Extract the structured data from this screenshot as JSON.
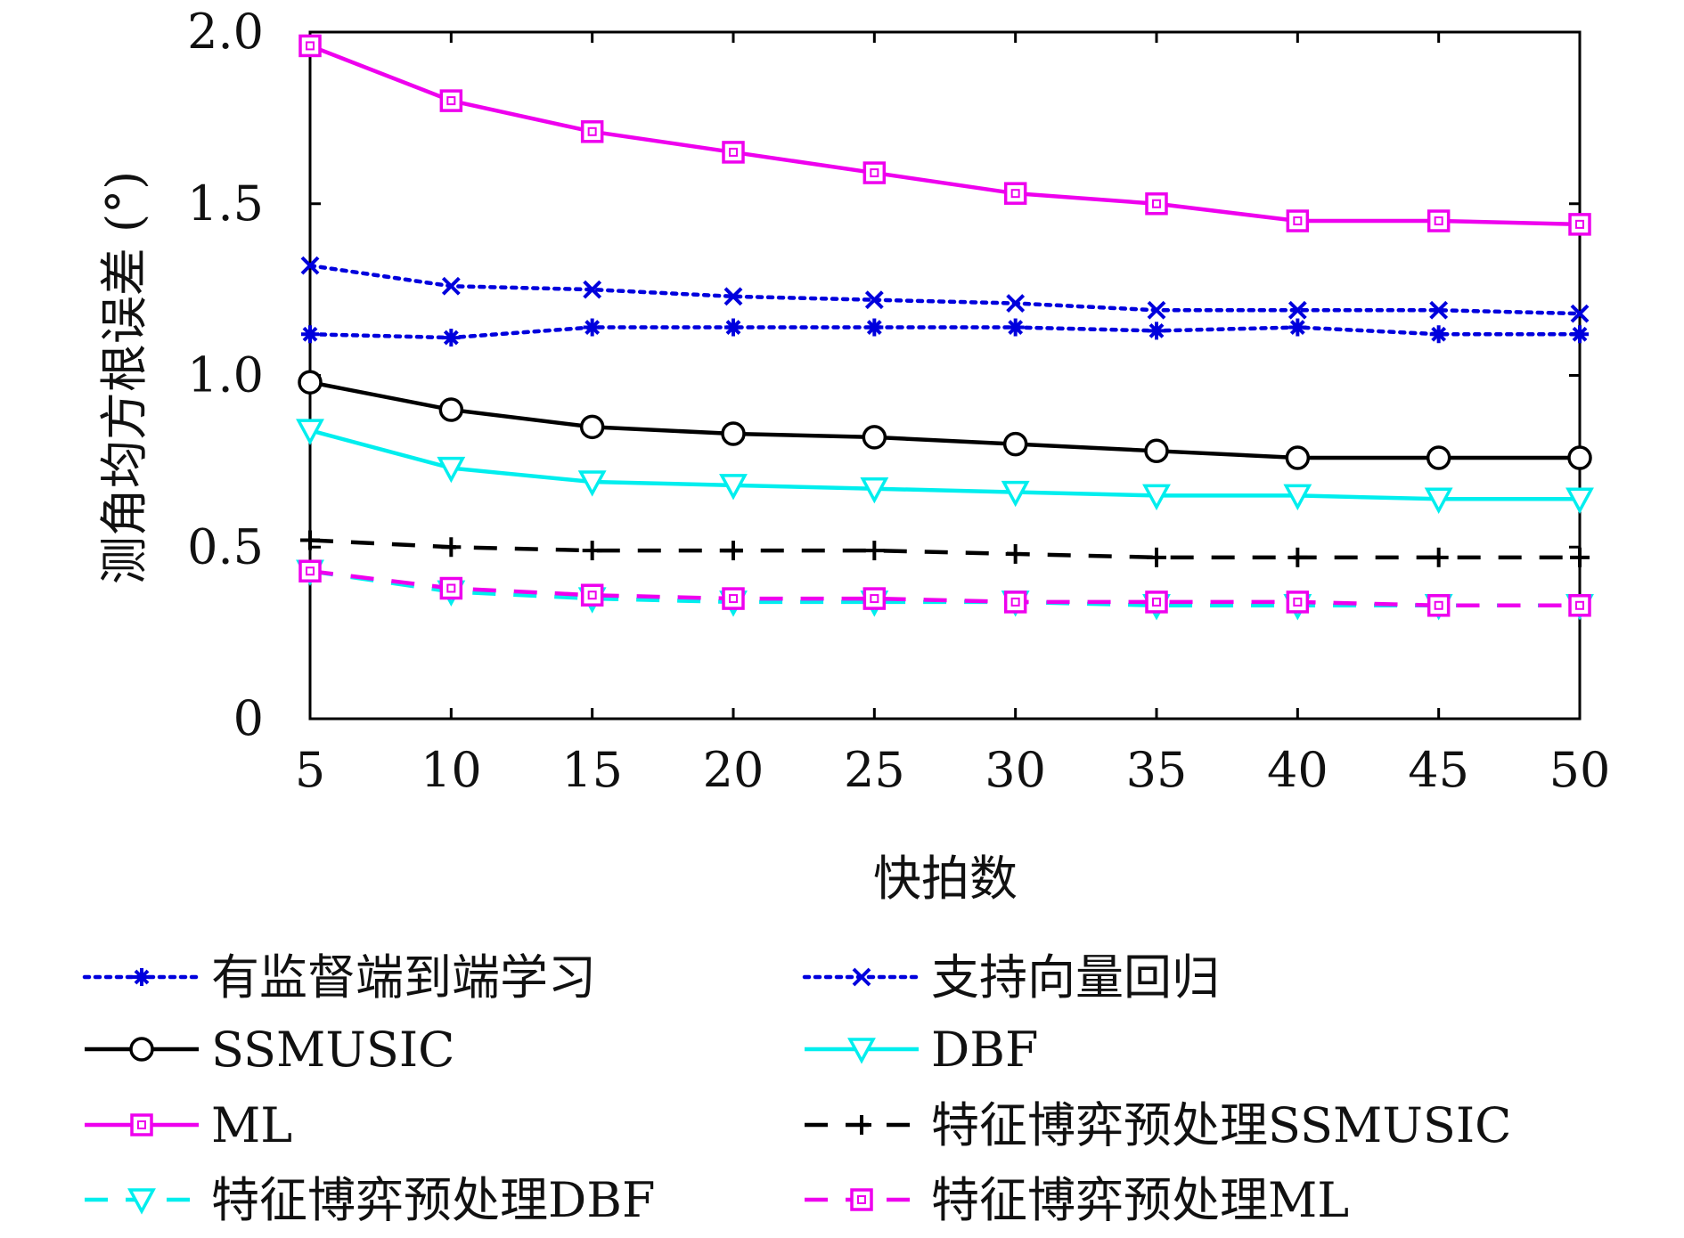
{
  "chart_data": {
    "type": "line",
    "title": "",
    "xlabel": "快拍数",
    "ylabel": "测角均方根误差 (°)",
    "xlim": [
      5,
      50
    ],
    "ylim": [
      0,
      2.0
    ],
    "x": [
      5,
      10,
      15,
      20,
      25,
      30,
      35,
      40,
      45,
      50
    ],
    "x_ticks": [
      "5",
      "10",
      "15",
      "20",
      "25",
      "30",
      "35",
      "40",
      "45",
      "50"
    ],
    "y_ticks": [
      {
        "value": 0,
        "label": "0"
      },
      {
        "value": 0.5,
        "label": "0.5"
      },
      {
        "value": 1.0,
        "label": "1.0"
      },
      {
        "value": 1.5,
        "label": "1.5"
      },
      {
        "value": 2.0,
        "label": "2.0"
      }
    ],
    "grid": false,
    "legend_position": "bottom",
    "series": [
      {
        "name": "有监督端到端学习",
        "color": "#0000dd",
        "dash": "dotted",
        "marker": "asterisk",
        "values": [
          1.12,
          1.11,
          1.14,
          1.14,
          1.14,
          1.14,
          1.13,
          1.14,
          1.12,
          1.12
        ]
      },
      {
        "name": "支持向量回归",
        "color": "#0000dd",
        "dash": "dotted",
        "marker": "x",
        "values": [
          1.32,
          1.26,
          1.25,
          1.23,
          1.22,
          1.21,
          1.19,
          1.19,
          1.19,
          1.18
        ]
      },
      {
        "name": "SSMUSIC",
        "color": "#000000",
        "dash": "solid",
        "marker": "circle",
        "values": [
          0.98,
          0.9,
          0.85,
          0.83,
          0.82,
          0.8,
          0.78,
          0.76,
          0.76,
          0.76
        ]
      },
      {
        "name": "DBF",
        "color": "#00eeee",
        "dash": "solid",
        "marker": "triangle-down",
        "values": [
          0.84,
          0.73,
          0.69,
          0.68,
          0.67,
          0.66,
          0.65,
          0.65,
          0.64,
          0.64
        ]
      },
      {
        "name": "ML",
        "color": "#ee00ee",
        "dash": "solid",
        "marker": "square",
        "values": [
          1.96,
          1.8,
          1.71,
          1.65,
          1.59,
          1.53,
          1.5,
          1.45,
          1.45,
          1.44
        ]
      },
      {
        "name": "特征博弈预处理SSMUSIC",
        "color": "#000000",
        "dash": "dashed",
        "marker": "plus",
        "values": [
          0.52,
          0.5,
          0.49,
          0.49,
          0.49,
          0.48,
          0.47,
          0.47,
          0.47,
          0.47
        ]
      },
      {
        "name": "特征博弈预处理DBF",
        "color": "#00eeee",
        "dash": "dashed",
        "marker": "triangle-down",
        "values": [
          0.43,
          0.37,
          0.35,
          0.34,
          0.34,
          0.34,
          0.33,
          0.33,
          0.33,
          0.33
        ]
      },
      {
        "name": "特征博弈预处理ML",
        "color": "#ee00ee",
        "dash": "dashed",
        "marker": "square",
        "values": [
          0.43,
          0.38,
          0.36,
          0.35,
          0.35,
          0.34,
          0.34,
          0.34,
          0.33,
          0.33
        ]
      }
    ]
  }
}
